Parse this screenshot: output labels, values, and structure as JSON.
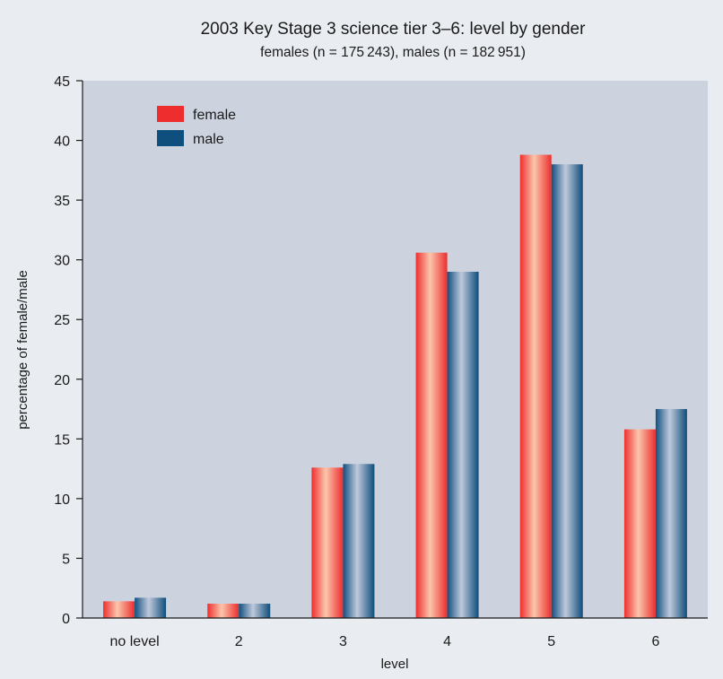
{
  "chart_data": {
    "type": "bar",
    "title": "2003 Key Stage 3 science tier 3–6: level by gender",
    "subtitle": "females (n = 175 243), males (n = 182 951)",
    "xlabel": "level",
    "ylabel": "percentage of female/male",
    "categories": [
      "no level",
      "2",
      "3",
      "4",
      "5",
      "6"
    ],
    "series": [
      {
        "name": "female",
        "values": [
          1.4,
          1.2,
          12.6,
          30.6,
          38.8,
          15.8
        ]
      },
      {
        "name": "male",
        "values": [
          1.7,
          1.2,
          12.9,
          29.0,
          38.0,
          17.5
        ]
      }
    ],
    "ylim": [
      0,
      45
    ],
    "yticks": [
      0,
      5,
      10,
      15,
      20,
      25,
      30,
      35,
      40,
      45
    ],
    "grid": false,
    "legend_position": "top-left",
    "colors": {
      "female": "#ee2e2e",
      "male": "#0f4f7d",
      "plot_background": "#ccd3df",
      "page_background": "#e9ecf1"
    }
  }
}
